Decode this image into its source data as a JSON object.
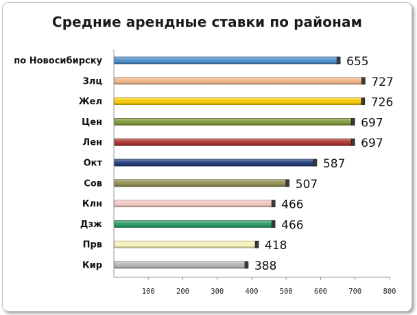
{
  "chart_data": {
    "type": "bar",
    "orientation": "horizontal",
    "title": "Средние арендные ставки по районам",
    "categories": [
      "по Новосибирску",
      "Злц",
      "Жел",
      "Цен",
      "Лен",
      "Окт",
      "Сов",
      "Клн",
      "Дзж",
      "Прв",
      "Кир"
    ],
    "values": [
      655,
      727,
      726,
      697,
      697,
      587,
      507,
      466,
      466,
      418,
      388
    ],
    "value_labels": [
      "655",
      "727",
      "726",
      "697",
      "697",
      "587",
      "507",
      "466",
      "466",
      "418",
      "388"
    ],
    "bar_colors": [
      "#4f8ec9",
      "#f2b488",
      "#f5c800",
      "#7f9a3c",
      "#a8322e",
      "#243d7a",
      "#8e8e52",
      "#f0c4c0",
      "#2a9a62",
      "#f7f1b8",
      "#b3b3b3"
    ],
    "xlim": [
      0,
      800
    ],
    "x_ticks": [
      100,
      200,
      300,
      400,
      500,
      600,
      700,
      800
    ],
    "x_tick_labels": [
      "100",
      "200",
      "300",
      "400",
      "500",
      "600",
      "700",
      "800"
    ],
    "grid": false,
    "legend": "none"
  }
}
